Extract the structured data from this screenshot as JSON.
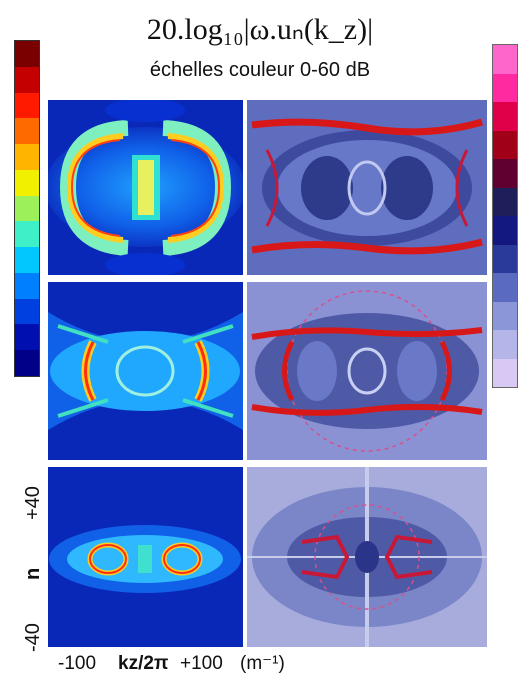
{
  "figure": {
    "title": "20.log₁₀|ω.uₙ(k_z)|",
    "subtitle": "échelles couleur 0-60 dB",
    "y_axis": {
      "top_label": "+40",
      "bottom_label": "-40",
      "variable": "n"
    },
    "x_axis": {
      "left_label": "-100",
      "variable": "kz/2π",
      "right_label": "+100",
      "unit": "(m⁻¹)"
    }
  },
  "colorbars": {
    "left": [
      "#7a0000",
      "#c40000",
      "#ff1a00",
      "#ff6a00",
      "#ffb400",
      "#f0f000",
      "#9cf05a",
      "#3ef0c8",
      "#00c8ff",
      "#0080ff",
      "#0040e0",
      "#0010b0",
      "#000088"
    ],
    "right": [
      "#ff66cc",
      "#ff2aa0",
      "#e0004a",
      "#a00018",
      "#600030",
      "#1e1e5a",
      "#121880",
      "#2a3a9a",
      "#5a6ac0",
      "#8a96d8",
      "#b4b6ea",
      "#d8c8f4"
    ]
  },
  "colors": {
    "sim_bg": "#1020c8",
    "exp_bg": "#6a78c8",
    "ridge": "#d81818",
    "dashed_circle": "#d8508a"
  }
}
